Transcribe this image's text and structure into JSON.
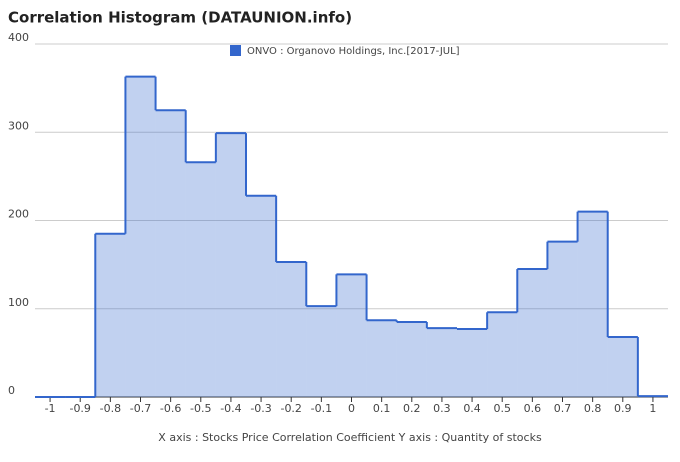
{
  "chart_data": {
    "type": "histogram",
    "title": "Correlation Histogram (DATAUNION.info)",
    "x_label": "X axis : Stocks Price Correlation Coefficient  Y axis : Quantity of stocks",
    "series": [
      {
        "name": "ONVO : Organovo Holdings, Inc.[2017-JUL]",
        "color": "#3366cc",
        "values": [
          0,
          0,
          185,
          363,
          325,
          266,
          299,
          228,
          153,
          103,
          139,
          87,
          85,
          78,
          77,
          96,
          145,
          176,
          210,
          68,
          1
        ]
      }
    ],
    "bins": [
      -1.05,
      -0.95,
      -0.85,
      -0.75,
      -0.65,
      -0.55,
      -0.45,
      -0.35,
      -0.25,
      -0.15,
      -0.05,
      0.05,
      0.15,
      0.25,
      0.35,
      0.45,
      0.55,
      0.65,
      0.75,
      0.85,
      0.95,
      1.05
    ],
    "xlim": [
      -1.05,
      1.05
    ],
    "xticks": [
      -1,
      -0.9,
      -0.8,
      -0.7,
      -0.6,
      -0.5,
      -0.4,
      -0.3,
      -0.2,
      -0.1,
      0,
      0.1,
      0.2,
      0.3,
      0.4,
      0.5,
      0.6,
      0.7,
      0.8,
      0.9,
      1
    ],
    "ylim": [
      0,
      400
    ],
    "yticks": [
      0,
      100,
      200,
      300,
      400
    ],
    "grid": true
  }
}
